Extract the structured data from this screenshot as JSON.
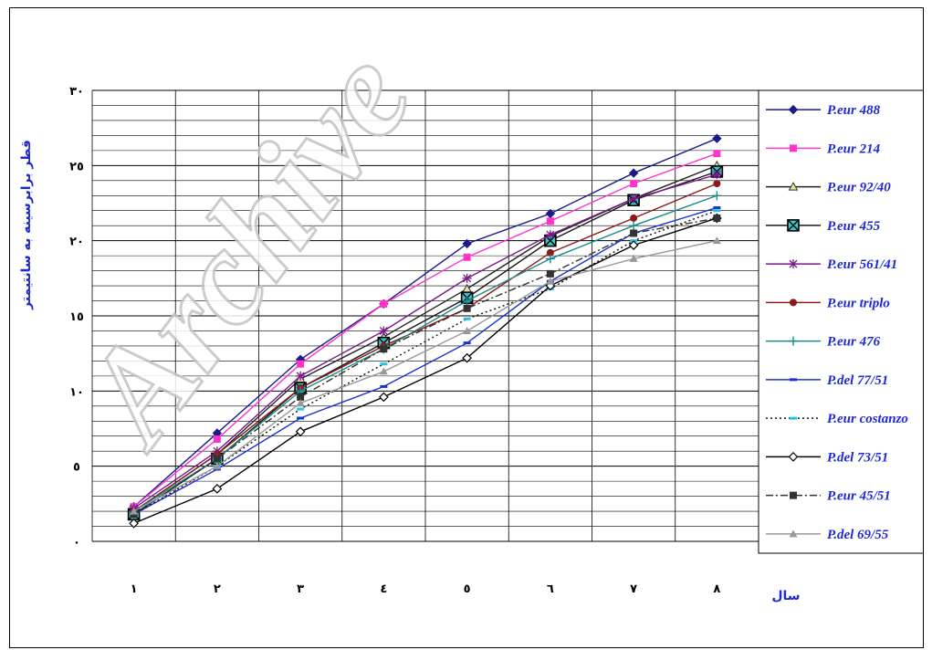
{
  "watermark": "Archive",
  "chart_data": {
    "type": "line",
    "xlabel": "سال",
    "ylabel": "قطر برابرسینه به سانتیمتر",
    "x": [
      1,
      2,
      3,
      4,
      5,
      6,
      7,
      8
    ],
    "x_tick_labels": [
      "١",
      "٢",
      "٣",
      "٤",
      "٥",
      "٦",
      "٧",
      "٨"
    ],
    "ylim": [
      0,
      30
    ],
    "y_ticks": [
      0,
      5,
      10,
      15,
      20,
      25,
      30
    ],
    "y_tick_labels": [
      "٠",
      "٥",
      "١٠",
      "١٥",
      "٢٠",
      "٢٥",
      "٣٠"
    ],
    "grid": true,
    "legend_position": "right",
    "series": [
      {
        "name": "P.eur 488",
        "color": "#1a1a8c",
        "marker": "diamond",
        "dash": "solid",
        "values": [
          2.3,
          7.2,
          12.1,
          15.8,
          19.8,
          21.8,
          24.5,
          26.8
        ]
      },
      {
        "name": "P.eur 214",
        "color": "#ff33cc",
        "marker": "square",
        "dash": "solid",
        "values": [
          2.3,
          6.8,
          11.8,
          15.8,
          18.9,
          21.3,
          23.8,
          25.8
        ]
      },
      {
        "name": "P.eur 92/40",
        "color": "#222222",
        "marker": "triangle-open",
        "dash": "solid",
        "values": [
          2.0,
          5.8,
          10.8,
          13.6,
          16.8,
          20.3,
          22.8,
          25.0
        ]
      },
      {
        "name": "P.eur 455",
        "color": "#1a1a1a",
        "marker": "square-x",
        "dash": "solid",
        "values": [
          1.8,
          5.5,
          10.2,
          13.2,
          16.2,
          20.0,
          22.7,
          24.6
        ]
      },
      {
        "name": "P.eur 561/41",
        "color": "#7a1a8c",
        "marker": "asterisk",
        "dash": "solid",
        "values": [
          2.2,
          6.0,
          11.0,
          14.0,
          17.5,
          20.4,
          22.8,
          24.4
        ]
      },
      {
        "name": "P.eur triplo",
        "color": "#8b1a1a",
        "marker": "circle",
        "dash": "solid",
        "values": [
          2.0,
          5.8,
          10.2,
          13.0,
          15.5,
          19.2,
          21.5,
          23.8
        ]
      },
      {
        "name": "P.eur 476",
        "color": "#1a8a8a",
        "marker": "plus",
        "dash": "solid",
        "values": [
          2.0,
          5.5,
          10.0,
          12.8,
          16.0,
          18.8,
          21.0,
          23.0
        ]
      },
      {
        "name": "P.del 77/51",
        "color": "#1a33cc",
        "marker": "dash",
        "dash": "solid",
        "values": [
          1.8,
          4.8,
          8.2,
          10.3,
          13.2,
          17.3,
          20.5,
          22.2
        ]
      },
      {
        "name": "P.eur costanzo",
        "color": "#111111",
        "marker": "cyan-dash",
        "dash": "dotted",
        "values": [
          1.8,
          5.0,
          8.8,
          11.8,
          14.8,
          16.8,
          20.0,
          22.0
        ]
      },
      {
        "name": "P.del 73/51",
        "color": "#000000",
        "marker": "diamond-open",
        "dash": "solid",
        "values": [
          1.2,
          3.5,
          7.3,
          9.6,
          12.2,
          17.0,
          19.7,
          21.5
        ]
      },
      {
        "name": "P.eur 45/51",
        "color": "#333333",
        "marker": "square",
        "dash": "dashdot",
        "values": [
          1.8,
          5.5,
          9.6,
          12.8,
          15.5,
          17.8,
          20.5,
          21.5
        ]
      },
      {
        "name": "P.del 69/55",
        "color": "#999999",
        "marker": "triangle",
        "dash": "solid",
        "values": [
          2.0,
          5.0,
          9.2,
          11.3,
          14.0,
          17.3,
          18.8,
          20.0
        ]
      }
    ]
  }
}
